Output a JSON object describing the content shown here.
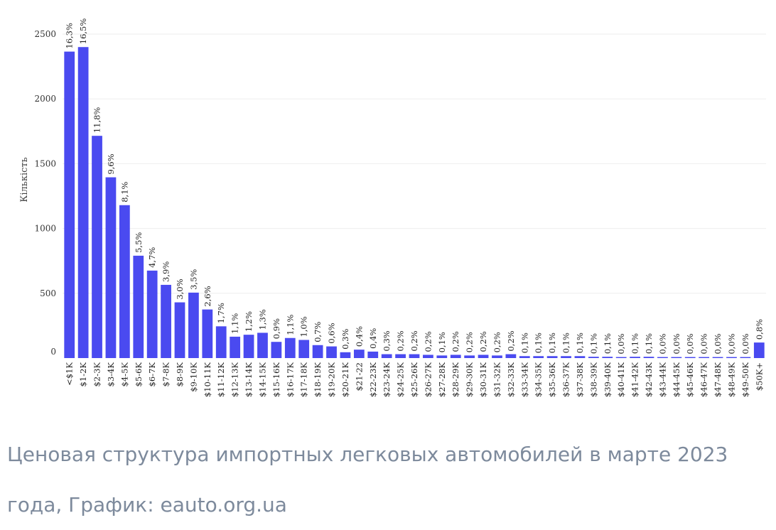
{
  "chart_data": {
    "type": "bar",
    "ylabel": "Кількість",
    "xlabel": "",
    "ylim": [
      0,
      2500
    ],
    "yticks": [
      0,
      500,
      1000,
      1500,
      2000,
      2500
    ],
    "grid": true,
    "bar_color": "#4a4af0",
    "categories": [
      "<$1K",
      "$1-2K",
      "$2-3K",
      "$3-4K",
      "$4-5K",
      "$5-6K",
      "$6-7K",
      "$7-8K",
      "$8-9K",
      "$9-10K",
      "$10-11K",
      "$11-12K",
      "$12-13K",
      "$13-14K",
      "$14-15K",
      "$15-16K",
      "$16-17K",
      "$17-18K",
      "$18-19K",
      "$19-20K",
      "$20-21K",
      "$21-22",
      "$22-23K",
      "$23-24K",
      "$24-25K",
      "$25-26K",
      "$26-27K",
      "$27-28K",
      "$28-29K",
      "$29-30K",
      "$30-31K",
      "$31-32K",
      "$32-33K",
      "$33-34K",
      "$34-35K",
      "$35-36K",
      "$36-37K",
      "$37-38K",
      "$38-39K",
      "$39-40K",
      "$40-41K",
      "$41-42K",
      "$42-43K",
      "$43-44K",
      "$44-45K",
      "$45-46K",
      "$46-47K",
      "$47-48K",
      "$48-49K",
      "$49-50K",
      "$50K+"
    ],
    "values": [
      2365,
      2400,
      1715,
      1395,
      1180,
      790,
      675,
      565,
      430,
      505,
      375,
      245,
      165,
      180,
      195,
      125,
      155,
      140,
      100,
      90,
      45,
      65,
      50,
      30,
      30,
      30,
      25,
      20,
      25,
      20,
      25,
      20,
      30,
      15,
      15,
      15,
      15,
      15,
      10,
      10,
      8,
      10,
      10,
      8,
      8,
      8,
      8,
      8,
      8,
      8,
      120
    ],
    "labels": [
      "16,3%",
      "16,5%",
      "11,8%",
      "9,6%",
      "8,1%",
      "5,5%",
      "4,7%",
      "3,9%",
      "3,0%",
      "3,5%",
      "2,6%",
      "1,7%",
      "1,1%",
      "1,2%",
      "1,3%",
      "0,9%",
      "1,1%",
      "1,0%",
      "0,7%",
      "0,6%",
      "0,3%",
      "0,4%",
      "0,4%",
      "0,3%",
      "0,2%",
      "0,2%",
      "0,2%",
      "0,1%",
      "0,2%",
      "0,2%",
      "0,2%",
      "0,2%",
      "0,2%",
      "0,1%",
      "0,1%",
      "0,1%",
      "0,1%",
      "0,1%",
      "0,1%",
      "0,1%",
      "0,0%",
      "0,1%",
      "0,1%",
      "0,0%",
      "0,0%",
      "0,0%",
      "0,0%",
      "0,0%",
      "0,0%",
      "0,0%",
      "0,8%"
    ]
  },
  "caption": "Ценовая структура импортных легковых автомобилей в марте 2023 года, График: eauto.org.ua"
}
